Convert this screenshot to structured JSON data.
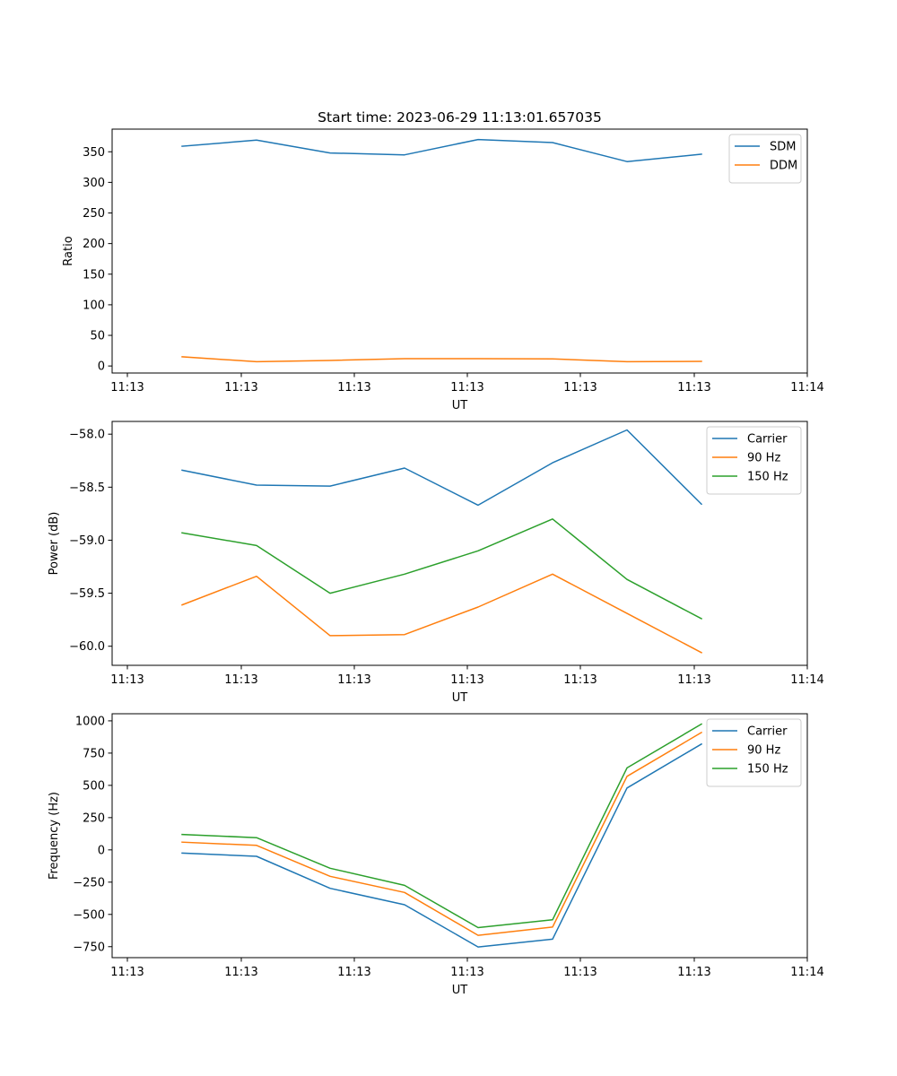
{
  "figure_title": "Start time: 2023-06-29 11:13:01.657035",
  "chart_data": [
    {
      "type": "line",
      "xlabel": "UT",
      "ylabel": "Ratio",
      "x_tick_labels": [
        "11:13",
        "11:13",
        "11:13",
        "11:13",
        "11:13",
        "11:13",
        "11:14"
      ],
      "y_ticks": [
        0,
        50,
        100,
        150,
        200,
        250,
        300,
        350
      ],
      "ylim": [
        -11.5,
        387
      ],
      "legend_position": "upper right",
      "grid": false,
      "series": [
        {
          "name": "SDM",
          "color": "#1f77b4",
          "values": [
            359,
            369,
            348,
            345,
            370,
            365,
            334,
            346
          ]
        },
        {
          "name": "DDM",
          "color": "#ff7f0e",
          "values": [
            15,
            7,
            9,
            12,
            12,
            11.5,
            7,
            7.5
          ]
        }
      ]
    },
    {
      "type": "line",
      "xlabel": "UT",
      "ylabel": "Power (dB)",
      "x_tick_labels": [
        "11:13",
        "11:13",
        "11:13",
        "11:13",
        "11:13",
        "11:13",
        "11:14"
      ],
      "y_ticks": [
        -60.0,
        -59.5,
        -59.0,
        -58.5,
        -58.0
      ],
      "ylim": [
        -60.18,
        -57.88
      ],
      "legend_position": "upper right",
      "grid": false,
      "series": [
        {
          "name": "Carrier",
          "color": "#1f77b4",
          "values": [
            -58.34,
            -58.48,
            -58.49,
            -58.32,
            -58.67,
            -58.27,
            -57.96,
            -58.66
          ]
        },
        {
          "name": "90 Hz",
          "color": "#ff7f0e",
          "values": [
            -59.61,
            -59.34,
            -59.9,
            -59.89,
            -59.63,
            -59.32,
            -59.69,
            -60.06
          ]
        },
        {
          "name": "150 Hz",
          "color": "#2ca02c",
          "values": [
            -58.93,
            -59.05,
            -59.5,
            -59.32,
            -59.1,
            -58.8,
            -59.37,
            -59.74
          ]
        }
      ]
    },
    {
      "type": "line",
      "xlabel": "UT",
      "ylabel": "Frequency (Hz)",
      "x_tick_labels": [
        "11:13",
        "11:13",
        "11:13",
        "11:13",
        "11:13",
        "11:13",
        "11:14"
      ],
      "y_ticks": [
        -750,
        -500,
        -250,
        0,
        250,
        500,
        750,
        1000
      ],
      "ylim": [
        -835,
        1055
      ],
      "legend_position": "upper right",
      "grid": false,
      "series": [
        {
          "name": "Carrier",
          "color": "#1f77b4",
          "values": [
            -25,
            -50,
            -298,
            -425,
            -752,
            -692,
            480,
            820
          ]
        },
        {
          "name": "90 Hz",
          "color": "#ff7f0e",
          "values": [
            60,
            35,
            -205,
            -330,
            -662,
            -598,
            570,
            910
          ]
        },
        {
          "name": "150 Hz",
          "color": "#2ca02c",
          "values": [
            120,
            95,
            -142,
            -275,
            -602,
            -542,
            635,
            975
          ]
        }
      ]
    }
  ]
}
